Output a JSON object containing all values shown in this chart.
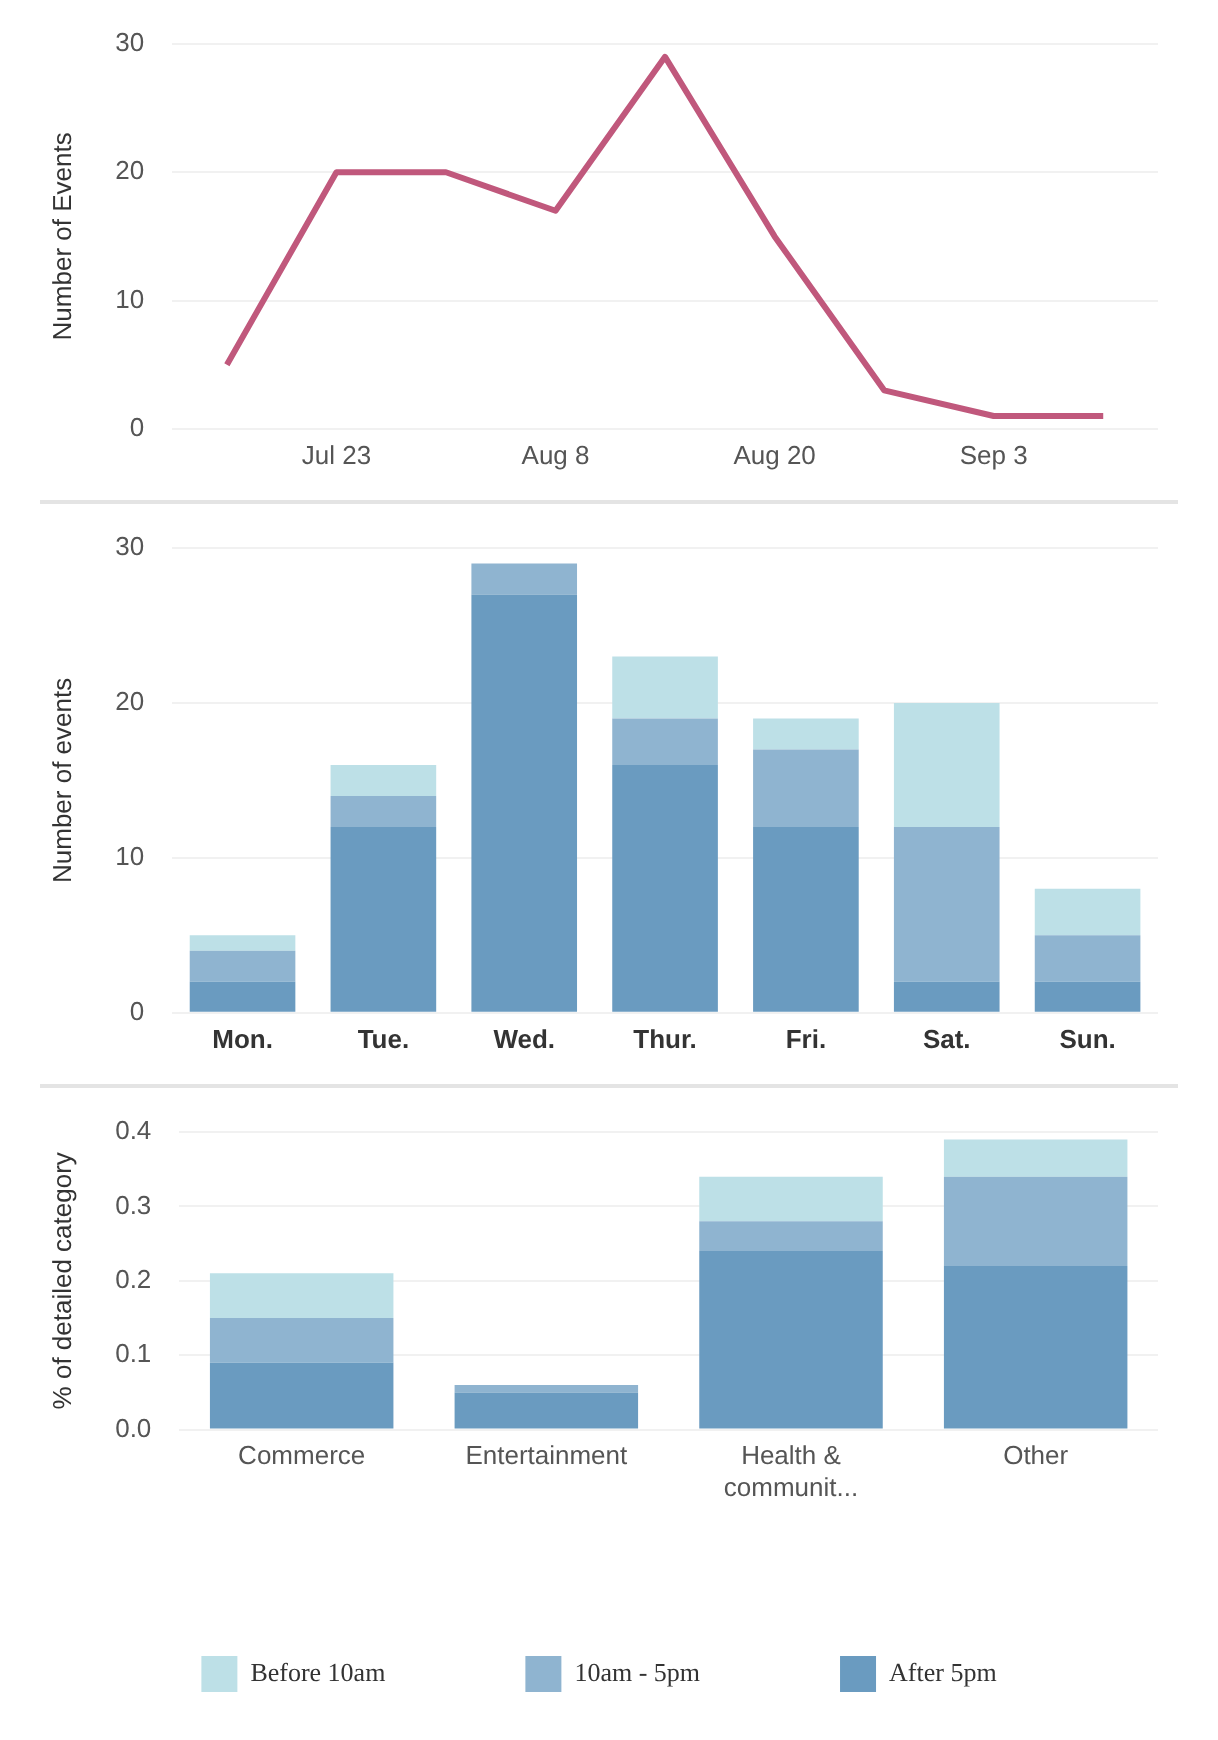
{
  "chart_data": [
    {
      "type": "line",
      "ylabel": "Number of Events",
      "categories": [
        null,
        "Jul 23",
        null,
        "Aug 8",
        null,
        "Aug 20",
        null,
        "Sep 3",
        null
      ],
      "series": [
        {
          "color": "#c0587c",
          "values": [
            5,
            20,
            20,
            17,
            29,
            15,
            3,
            1,
            1
          ]
        }
      ],
      "ylim": [
        0,
        30
      ],
      "yticks": [
        0,
        10,
        20,
        30
      ],
      "grid": "y",
      "legend": false,
      "marker": "none",
      "line_style": "solid"
    },
    {
      "type": "bar",
      "stacked": true,
      "ylabel": "Number of events",
      "categories": [
        "Mon.",
        "Tue.",
        "Wed.",
        "Thur.",
        "Fri.",
        "Sat.",
        "Sun."
      ],
      "series": [
        {
          "color": "#6a9bc0",
          "values": [
            2,
            12,
            27,
            16,
            12,
            2,
            2
          ]
        },
        {
          "color": "#8fb4d0",
          "values": [
            2,
            2,
            2,
            3,
            5,
            10,
            3
          ]
        },
        {
          "color": "#bde0e7",
          "values": [
            1,
            2,
            0,
            4,
            2,
            8,
            3
          ]
        }
      ],
      "ylim": [
        0,
        30
      ],
      "yticks": [
        0,
        10,
        20,
        30
      ],
      "grid": "y",
      "legend": false
    },
    {
      "type": "bar",
      "stacked": true,
      "ylabel": "% of detailed category",
      "categories": [
        "Commerce",
        "Entertainment",
        "Health & communit...",
        "Other"
      ],
      "series": [
        {
          "name": "After 5pm",
          "color": "#6a9bc0",
          "values": [
            0.09,
            0.05,
            0.24,
            0.22
          ]
        },
        {
          "name": "10am - 5pm",
          "color": "#8fb4d0",
          "values": [
            0.06,
            0.01,
            0.04,
            0.12
          ]
        },
        {
          "name": "Before 10am",
          "color": "#bde0e7",
          "values": [
            0.06,
            0,
            0.06,
            0.05
          ]
        }
      ],
      "ylim": [
        0,
        0.4
      ],
      "yticks": [
        {
          "value": 0,
          "label": "0.0"
        },
        0.1,
        0.2,
        0.3,
        0.4
      ],
      "grid": "y",
      "legend": "bottom"
    }
  ]
}
